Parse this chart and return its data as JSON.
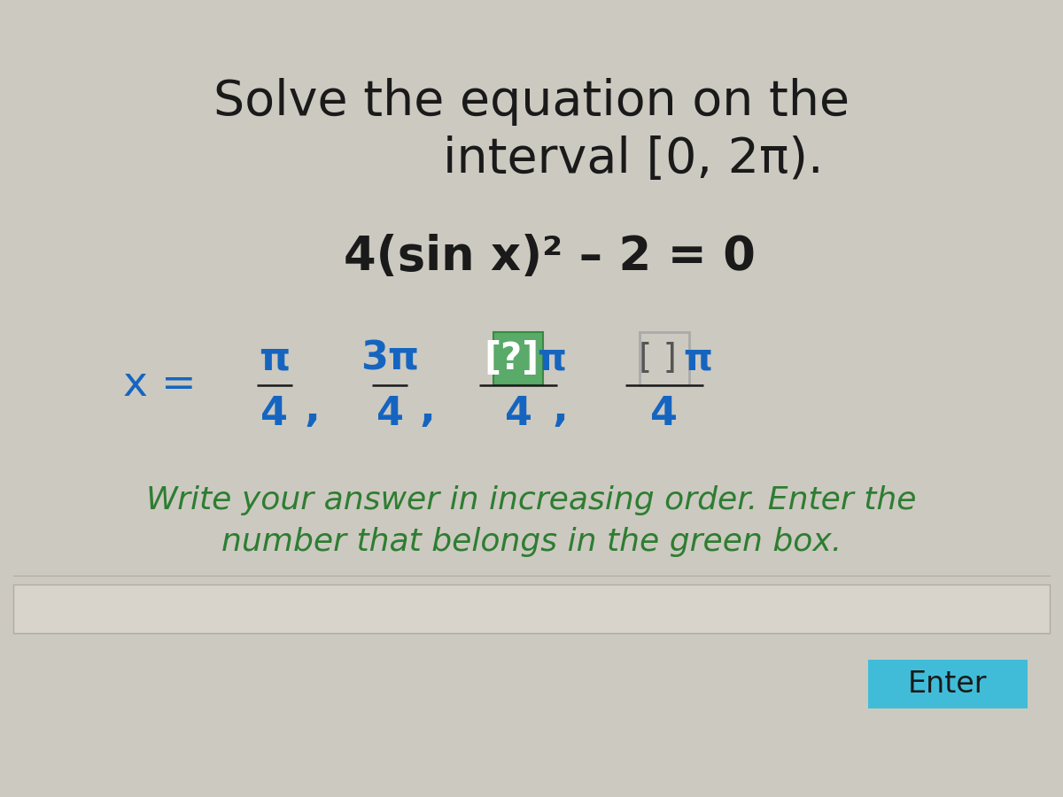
{
  "bg_color": "#ccc9c0",
  "title_line1": "Solve the equation on the",
  "title_line2": "interval [0, 2π).",
  "equation": "4(sin x)² – 2 = 0",
  "footer_line1": "Write your answer in increasing order. Enter the",
  "footer_line2": "number that belongs in the green box.",
  "footer_color": "#2e7d32",
  "enter_button_color": "#40bcd8",
  "enter_button_text": "Enter",
  "enter_text_color": "#1a1a1a",
  "title_color": "#1a1a1a",
  "equation_color": "#1a1a1a",
  "blue_color": "#1565c0",
  "green_box_fill": "#5aaa6a",
  "green_box_border": "#3a8a40",
  "gray_box_border": "#aaaaaa",
  "title_fontsize": 40,
  "equation_fontsize": 38,
  "answer_fontsize": 34,
  "footer_fontsize": 26
}
